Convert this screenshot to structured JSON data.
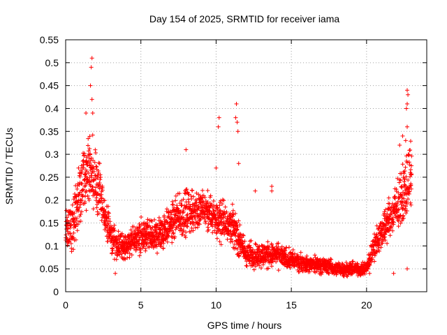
{
  "chart_data": {
    "type": "scatter",
    "title": "Day 154 of 2025, SRMTID for receiver iama",
    "xlabel": "GPS time / hours",
    "ylabel": "SRMTID / TECUs",
    "xlim": [
      0,
      24
    ],
    "ylim": [
      0,
      0.55
    ],
    "grid": true,
    "marker": "+",
    "marker_color": "#ff0000",
    "x_ticks": [
      0,
      5,
      10,
      15,
      20
    ],
    "x_tick_labels": [
      "0",
      "5",
      "10",
      "15",
      "20"
    ],
    "y_ticks": [
      0,
      0.05,
      0.1,
      0.15,
      0.2,
      0.25,
      0.3,
      0.35,
      0.4,
      0.45,
      0.5,
      0.55
    ],
    "y_tick_labels": [
      "0",
      "0.05",
      "0.1",
      "0.15",
      "0.2",
      "0.25",
      "0.3",
      "0.35",
      "0.4",
      "0.45",
      "0.5",
      "0.55"
    ],
    "envelope": {
      "x": [
        0,
        0.5,
        1.0,
        1.5,
        2.0,
        2.5,
        3.0,
        3.5,
        4.0,
        5.0,
        6.0,
        7.0,
        8.0,
        9.0,
        10.0,
        11.0,
        12.0,
        13.0,
        14.0,
        15.0,
        16.0,
        17.0,
        18.0,
        19.0,
        20.0,
        20.5,
        21.0,
        21.5,
        22.0,
        22.5,
        23.0
      ],
      "y_center": [
        0.13,
        0.15,
        0.22,
        0.27,
        0.24,
        0.18,
        0.12,
        0.1,
        0.1,
        0.12,
        0.12,
        0.15,
        0.17,
        0.18,
        0.16,
        0.15,
        0.08,
        0.08,
        0.08,
        0.07,
        0.06,
        0.06,
        0.05,
        0.05,
        0.05,
        0.1,
        0.13,
        0.16,
        0.18,
        0.22,
        0.26
      ],
      "y_spread": [
        0.06,
        0.08,
        0.1,
        0.12,
        0.1,
        0.06,
        0.05,
        0.04,
        0.04,
        0.05,
        0.05,
        0.06,
        0.07,
        0.06,
        0.06,
        0.06,
        0.04,
        0.04,
        0.035,
        0.03,
        0.025,
        0.025,
        0.02,
        0.02,
        0.02,
        0.04,
        0.05,
        0.06,
        0.07,
        0.09,
        0.1
      ]
    },
    "outliers": [
      {
        "x": 1.75,
        "y": 0.51
      },
      {
        "x": 1.7,
        "y": 0.49
      },
      {
        "x": 1.65,
        "y": 0.45
      },
      {
        "x": 1.75,
        "y": 0.42
      },
      {
        "x": 1.35,
        "y": 0.39
      },
      {
        "x": 1.8,
        "y": 0.39
      },
      {
        "x": 11.35,
        "y": 0.41
      },
      {
        "x": 11.3,
        "y": 0.38
      },
      {
        "x": 11.4,
        "y": 0.37
      },
      {
        "x": 11.45,
        "y": 0.35
      },
      {
        "x": 10.2,
        "y": 0.38
      },
      {
        "x": 10.15,
        "y": 0.36
      },
      {
        "x": 11.5,
        "y": 0.28
      },
      {
        "x": 10.0,
        "y": 0.27
      },
      {
        "x": 8.0,
        "y": 0.31
      },
      {
        "x": 13.7,
        "y": 0.23
      },
      {
        "x": 13.7,
        "y": 0.22
      },
      {
        "x": 12.6,
        "y": 0.22
      },
      {
        "x": 22.7,
        "y": 0.44
      },
      {
        "x": 22.75,
        "y": 0.43
      },
      {
        "x": 22.7,
        "y": 0.41
      },
      {
        "x": 22.65,
        "y": 0.4
      },
      {
        "x": 22.7,
        "y": 0.36
      },
      {
        "x": 22.4,
        "y": 0.34
      },
      {
        "x": 22.6,
        "y": 0.33
      },
      {
        "x": 22.2,
        "y": 0.32
      },
      {
        "x": 22.7,
        "y": 0.05
      },
      {
        "x": 21.8,
        "y": 0.04
      },
      {
        "x": 20.2,
        "y": 0.04
      },
      {
        "x": 3.3,
        "y": 0.04
      }
    ]
  }
}
